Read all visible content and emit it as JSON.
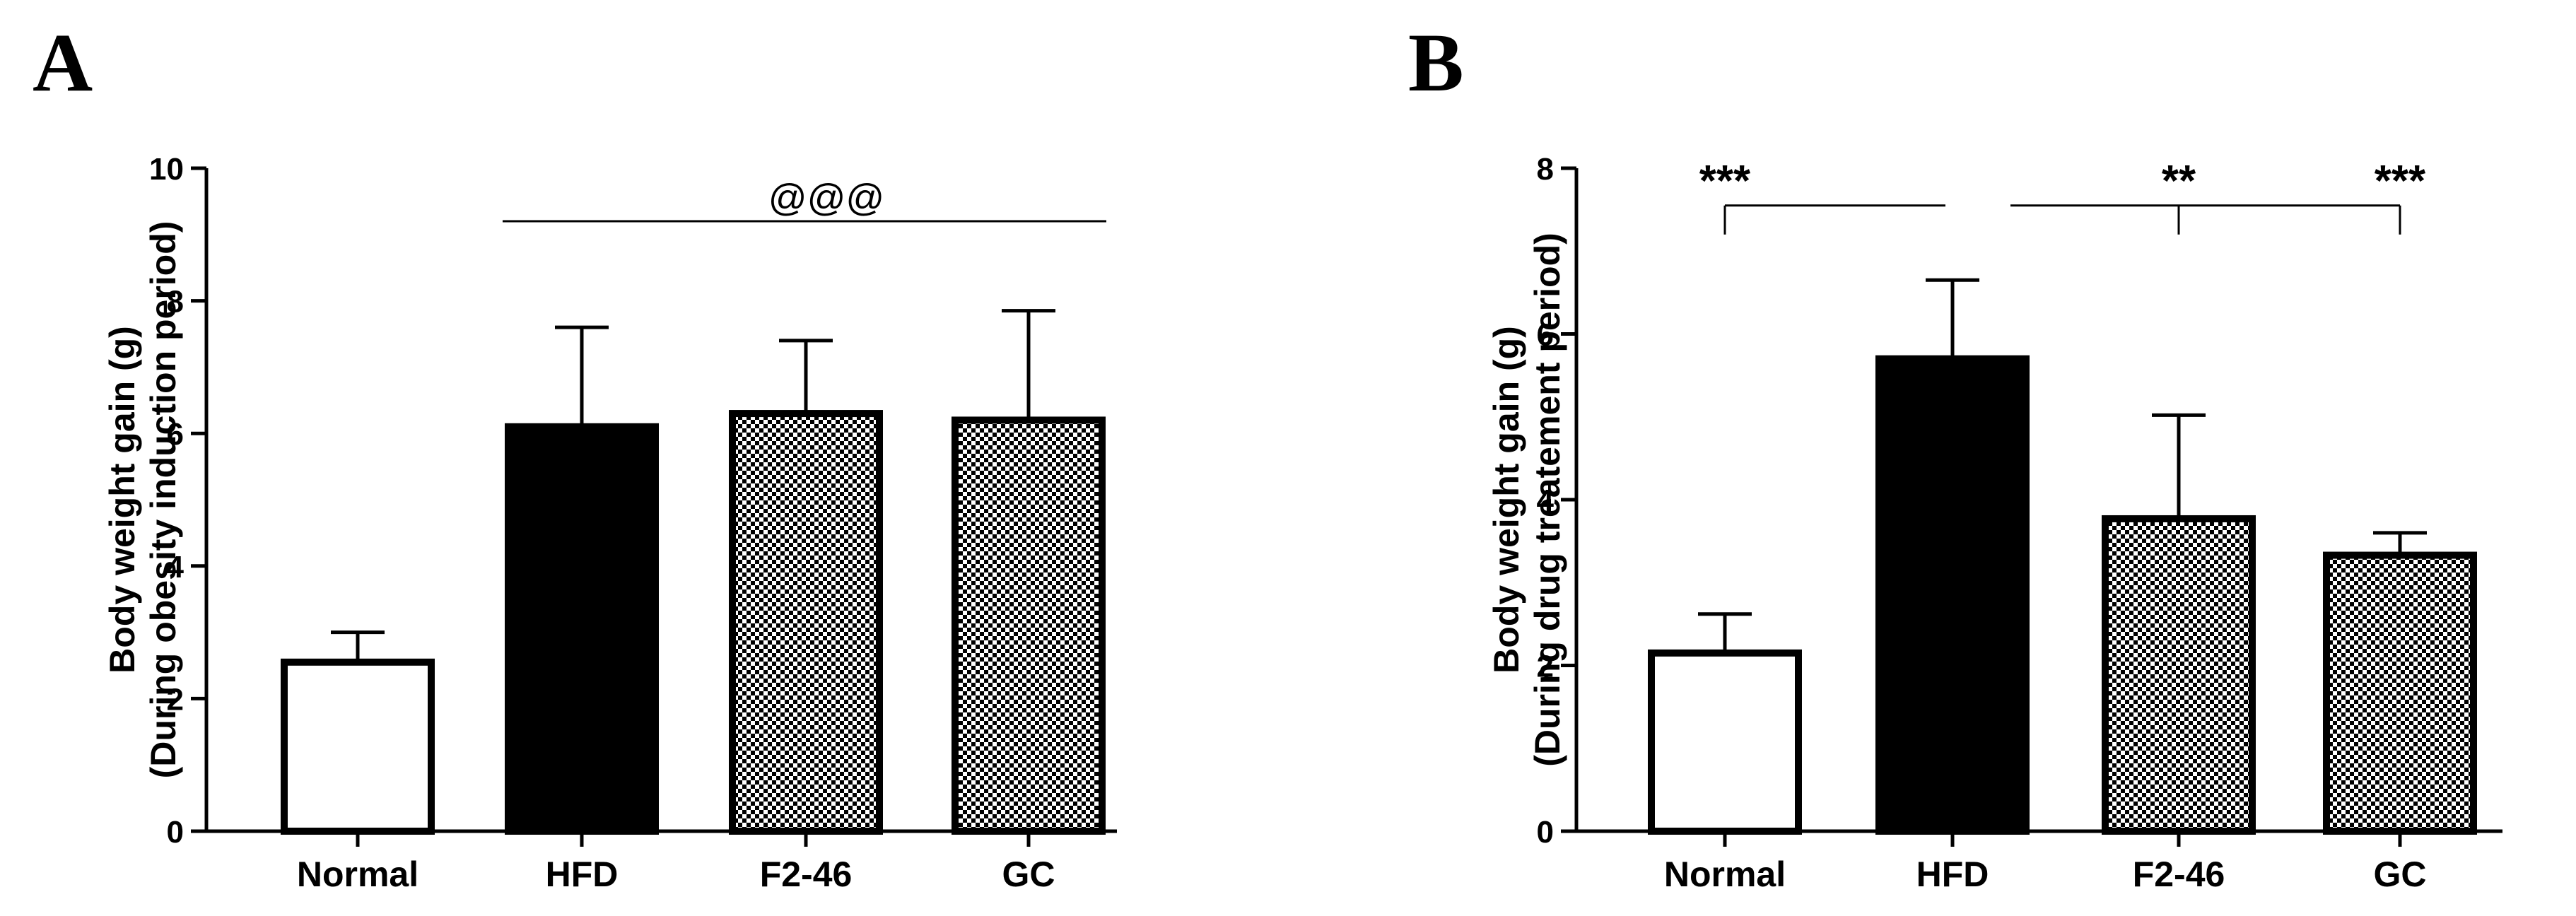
{
  "chart_data": [
    {
      "panel": "A",
      "type": "bar",
      "categories": [
        "Normal",
        "HFD",
        "F2-46",
        "GC"
      ],
      "values": [
        2.55,
        6.1,
        6.3,
        6.2
      ],
      "errors": [
        0.45,
        1.5,
        1.1,
        1.65
      ],
      "fills": [
        "white",
        "black",
        "checker",
        "checker"
      ],
      "ylabel_lines": [
        "Body weight gain (g)",
        "(During obesity induction period)"
      ],
      "ylim": [
        0,
        10
      ],
      "yticks": [
        0,
        2,
        4,
        6,
        8,
        10
      ],
      "yticks_labels": [
        "0",
        "2",
        "4",
        "6",
        "8",
        "10"
      ],
      "annotations": [
        {
          "text": "@@@",
          "type": "line",
          "from_index": 1,
          "to_index": 3,
          "y": 9.2,
          "text_y": 9.55
        }
      ]
    },
    {
      "panel": "B",
      "type": "bar",
      "categories": [
        "Normal",
        "HFD",
        "F2-46",
        "GC"
      ],
      "values": [
        2.15,
        5.7,
        3.77,
        3.33
      ],
      "errors": [
        0.47,
        0.95,
        1.25,
        0.27
      ],
      "fills": [
        "white",
        "black",
        "checker",
        "checker"
      ],
      "ylabel_lines": [
        "Body weight gain (g)",
        "(During drug treatement period)"
      ],
      "ylim": [
        0,
        8
      ],
      "yticks": [
        0,
        2,
        4,
        6,
        8
      ],
      "yticks_labels": [
        "0",
        "2",
        "4",
        "6",
        "8"
      ],
      "annotations": [
        {
          "text": "***",
          "type": "bracket",
          "from_index": 0,
          "to_index": 1,
          "y": 7.55,
          "drop": 0.35,
          "text_y": 7.6
        },
        {
          "text": "**",
          "type": "bracket",
          "from_index": 1,
          "to_index": 2,
          "y": 7.55,
          "drop": 0.35,
          "text_y": 7.6
        },
        {
          "text": "***",
          "type": "bracket",
          "from_index": 1,
          "to_index": 3,
          "y": 7.55,
          "drop": 0.35,
          "text_y": 7.6,
          "label_at": "to"
        }
      ]
    }
  ]
}
